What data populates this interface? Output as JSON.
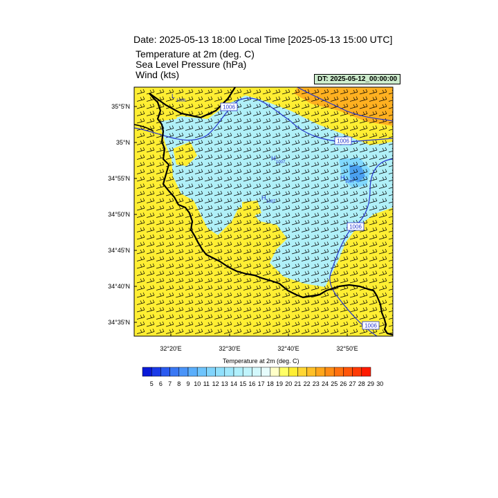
{
  "header": {
    "date_line": "Date: 2025-05-13  18:00 Local Time [2025-05-13  15:00 UTC]",
    "fields": [
      "Temperature at 2m   (deg. C)",
      "Sea Level Pressure   (hPa)",
      "Wind   (kts)"
    ],
    "dt_label": "DT: 2025-05-12_00:00:00"
  },
  "map": {
    "lat_ticks": [
      "35°5'N",
      "35°N",
      "34°55'N",
      "34°50'N",
      "34°45'N",
      "34°40'N",
      "34°35'N"
    ],
    "lon_ticks": [
      "32°20'E",
      "32°30'E",
      "32°40'E",
      "32°50'E"
    ],
    "isobar_labels": [
      "1006",
      "1006",
      "1006",
      "1006"
    ],
    "pressure_markers": [
      {
        "symbol": "L",
        "value": "1006"
      },
      {
        "symbol": "H",
        "value": "1007"
      },
      {
        "symbol": "H",
        "value": "1007"
      },
      {
        "symbol": "H",
        "value": "1007"
      }
    ],
    "colors": {
      "warm_fill": "#ffee33",
      "cool_fill": "#b0f0f8",
      "cooler_fill": "#80d8ff",
      "coldest_fill": "#4aa0f0",
      "hot_fill": "#ffb020",
      "isobar": "#2233cc",
      "coast": "#000000"
    }
  },
  "colorbar": {
    "title": "Temperature at 2m  (deg. C)",
    "labels": [
      "5",
      "6",
      "7",
      "8",
      "9",
      "10",
      "11",
      "12",
      "13",
      "14",
      "15",
      "16",
      "17",
      "18",
      "19",
      "20",
      "21",
      "22",
      "23",
      "24",
      "25",
      "26",
      "27",
      "28",
      "29",
      "30"
    ],
    "colors": [
      "#0a1ad8",
      "#1a3ae8",
      "#2a5af0",
      "#3a78f4",
      "#4a94f8",
      "#5aaefb",
      "#6ec4fc",
      "#80d4fc",
      "#90e0fc",
      "#a0e8fc",
      "#b0f0fc",
      "#c0f4fc",
      "#d2f8fc",
      "#e6fcfc",
      "#ffffc8",
      "#ffff66",
      "#ffee33",
      "#ffd633",
      "#ffbf26",
      "#ffa61a",
      "#ff8c14",
      "#ff700e",
      "#ff5508",
      "#ff3a04",
      "#ff1a00"
    ]
  }
}
